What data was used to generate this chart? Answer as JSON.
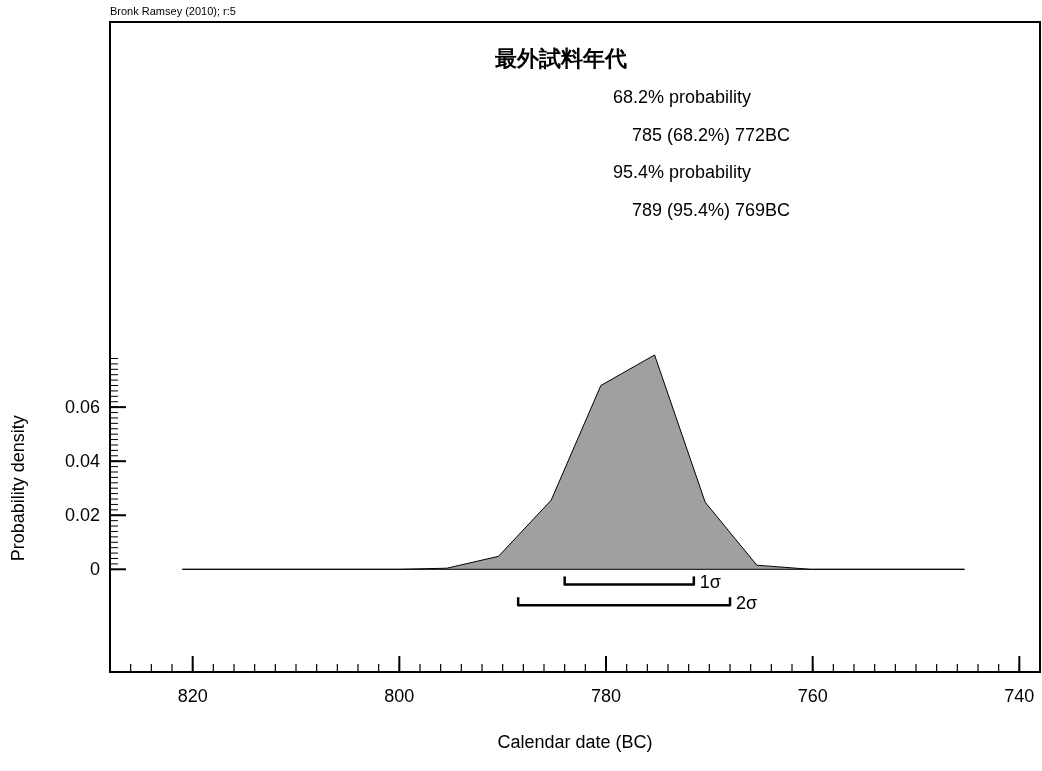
{
  "chart_data": {
    "type": "area",
    "title": "最外試料年代",
    "xlabel": "Calendar date (BC)",
    "ylabel": "Probability density",
    "annotations": [
      "Bronk Ramsey (2010); r:5",
      "68.2% probability",
      "785 (68.2%) 772BC",
      "95.4% probability",
      "789 (95.4%) 769BC",
      {
        "text": "1σ",
        "x": 771.5,
        "y": -0.0056
      },
      {
        "text": "2σ",
        "x": 768,
        "y": -0.0133
      }
    ],
    "xlim": [
      828,
      738
    ],
    "ylim": [
      -0.038,
      0.2025
    ],
    "xticks": [
      820,
      800,
      780,
      760,
      740
    ],
    "yticks": [
      0,
      0.02,
      0.04,
      0.06
    ],
    "series": [
      {
        "type": "area",
        "color": "#a0a0a0",
        "x": [
          821,
          800,
          795.4,
          790.4,
          785.3,
          780.5,
          775.3,
          770.4,
          765.4,
          760.2,
          745.3
        ],
        "values": [
          0,
          0,
          0.0004,
          0.0048,
          0.0256,
          0.068,
          0.0793,
          0.0248,
          0.0015,
          0,
          0
        ]
      },
      {
        "type": "line",
        "color": "#000000",
        "x": [
          784,
          771.5
        ],
        "values": [
          -0.0056,
          -0.0056
        ]
      },
      {
        "type": "line",
        "color": "#000000",
        "x": [
          788.5,
          768
        ],
        "values": [
          -0.0133,
          -0.0133
        ]
      }
    ]
  }
}
